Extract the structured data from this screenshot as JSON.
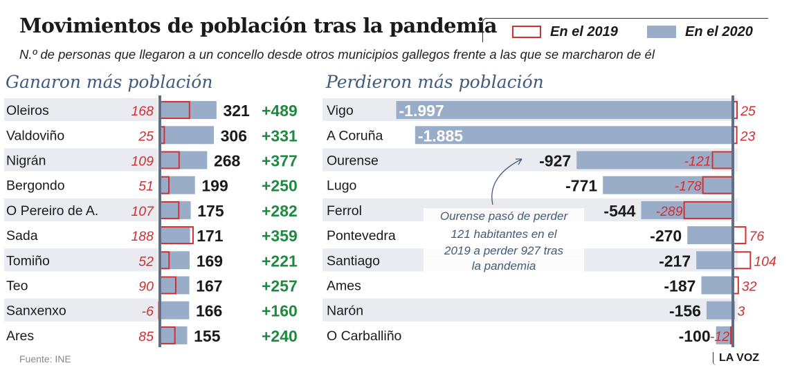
{
  "header": {
    "title": "Movimientos de población tras la pandemia",
    "subtitle": "N.º de personas que llegaron a un concello desde otros municipios gallegos frente a las que se marcharon de él"
  },
  "legend": {
    "items": [
      {
        "label": "En el 2019",
        "style": "outline",
        "color": "#d03030"
      },
      {
        "label": "En el 2020",
        "style": "filled",
        "color": "#9aadc8"
      }
    ]
  },
  "footer": {
    "source": "Fuente: INE",
    "brand": "LA VOZ"
  },
  "colors": {
    "bar_2020": "#9aadc8",
    "outline_2019": "#d03030",
    "axis": "#5f6f86",
    "row_shade": "#e9ebf1",
    "positive_change": "#1e8a3f",
    "heading": "#3f5a7a"
  },
  "chart_data": [
    {
      "type": "bar",
      "title": "Ganaron más población",
      "categories": [
        "Oleiros",
        "Valdoviño",
        "Nigrán",
        "Bergondo",
        "O Pereiro de A.",
        "Sada",
        "Tomiño",
        "Teo",
        "Sanxenxo",
        "Ares"
      ],
      "series": [
        {
          "name": "En el 2019",
          "values": [
            168,
            25,
            109,
            51,
            107,
            188,
            52,
            90,
            -6,
            85
          ]
        },
        {
          "name": "En el 2020",
          "values": [
            321,
            306,
            268,
            199,
            175,
            171,
            169,
            167,
            166,
            155
          ]
        }
      ],
      "change_labels": [
        "+489",
        "+331",
        "+377",
        "+250",
        "+282",
        "+359",
        "+221",
        "+257",
        "+160",
        "+240"
      ]
    },
    {
      "type": "bar",
      "title": "Perdieron más población",
      "categories": [
        "Vigo",
        "A Coruña",
        "Ourense",
        "Lugo",
        "Ferrol",
        "Pontevedra",
        "Santiago",
        "Ames",
        "Narón",
        "O Carballiño"
      ],
      "series": [
        {
          "name": "En el 2019",
          "values": [
            25,
            23,
            -121,
            -178,
            -289,
            76,
            104,
            32,
            3,
            -12
          ]
        },
        {
          "name": "En el 2020",
          "values": [
            -1997,
            -1885,
            -927,
            -771,
            -544,
            -270,
            -217,
            -187,
            -156,
            -100
          ]
        }
      ],
      "value_labels": [
        "-1.997",
        "-1.885",
        "-927",
        "-771",
        "-544",
        "-270",
        "-217",
        "-187",
        "-156",
        "-100"
      ],
      "label_2019": [
        "25",
        "23",
        "-121",
        "-178",
        "-289",
        "76",
        "104",
        "32",
        "3",
        "-12"
      ],
      "annotation": "Ourense pasó de perder 121 habitantes en el 2019 a perder 927 tras la pandemia"
    }
  ]
}
